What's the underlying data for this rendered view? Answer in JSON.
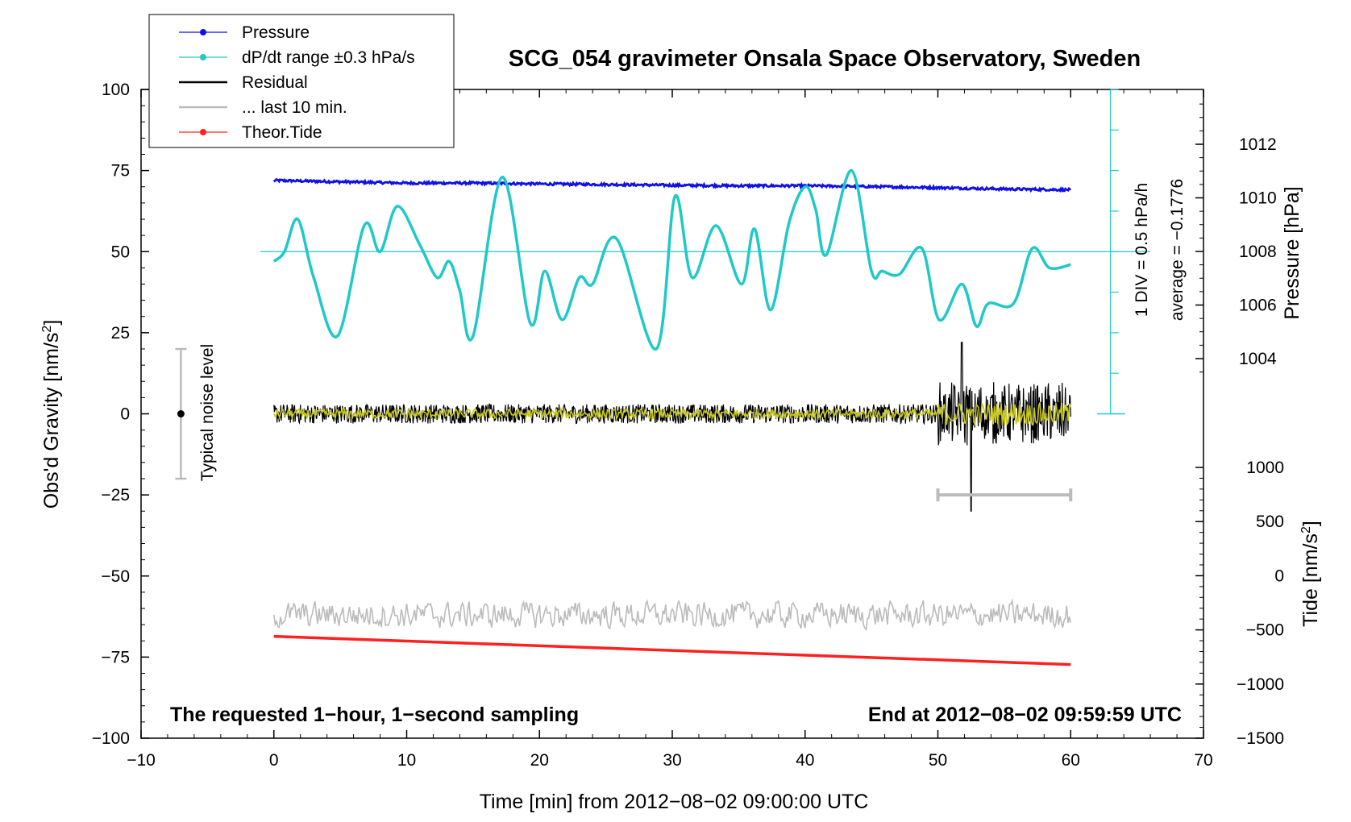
{
  "chart_data": {
    "type": "line",
    "title": "SCG_054 gravimeter Onsala Space Observatory, Sweden",
    "xlabel": "Time [min] from 2012−08−02 09:00:00 UTC",
    "ylabel_left": "Obs'd Gravity [nm/s",
    "ylabel_left_sup": "2",
    "ylabel_left_close": "]",
    "ylabel_pressure": "Pressure [hPa]",
    "ylabel_tide": "Tide [nm/s",
    "ylabel_tide_sup": "2",
    "ylabel_tide_close": "]",
    "xlim": [
      -10,
      70
    ],
    "ylim": [
      -100,
      100
    ],
    "x_ticks": [
      -10,
      0,
      10,
      20,
      30,
      40,
      50,
      60,
      70
    ],
    "x_tick_labels": [
      "−10",
      "0",
      "10",
      "20",
      "30",
      "40",
      "50",
      "60",
      "70"
    ],
    "y_ticks": [
      100,
      75,
      50,
      25,
      0,
      -25,
      -50,
      -75,
      -100
    ],
    "y_tick_labels": [
      "100",
      "75",
      "50",
      "25",
      "0",
      "−25",
      "−50",
      "−75",
      "−100"
    ],
    "pressure_axis": {
      "ticks": [
        1012,
        1010,
        1008,
        1006,
        1004
      ],
      "tick_labels": [
        "1012",
        "1010",
        "1008",
        "1006",
        "1004"
      ]
    },
    "tide_axis": {
      "ticks": [
        1000,
        500,
        0,
        -500,
        -1000,
        -1500
      ],
      "tick_labels": [
        "1000",
        "500",
        "0",
        "−500",
        "−1000",
        "−1500"
      ]
    },
    "legend": [
      {
        "label": "Pressure",
        "color": "#1010e8",
        "marker": "dot"
      },
      {
        "label": "dP/dt range ±0.3 hPa/s",
        "color": "#20c8c8",
        "marker": "dot"
      },
      {
        "label": "Residual",
        "color": "#000000",
        "marker": "none"
      },
      {
        "label": "... last 10 min.",
        "color": "#bbbbbb",
        "marker": "none"
      },
      {
        "label": "Theor.Tide",
        "color": "#ff2020",
        "marker": "dot"
      }
    ],
    "noise_label": "Typical noise level",
    "side_scale_text": "1 DIV = 0.5 hPa/h",
    "side_average_text": "average = −0.1776",
    "note_left": "The requested 1−hour, 1−second sampling",
    "note_right": "End at 2012−08−02 09:59:59 UTC",
    "series": [
      {
        "name": "Pressure",
        "color": "#1010e8",
        "x": [
          0,
          5,
          10,
          15,
          20,
          25,
          30,
          35,
          40,
          45,
          50,
          55,
          60
        ],
        "y_hPa": [
          1010.65,
          1010.6,
          1010.55,
          1010.55,
          1010.52,
          1010.5,
          1010.47,
          1010.45,
          1010.45,
          1010.42,
          1010.38,
          1010.33,
          1010.3
        ]
      },
      {
        "name": "dP/dt",
        "color": "#20c8c8",
        "x": [
          0,
          0.8,
          1.8,
          3,
          4.8,
          6.8,
          8,
          9.3,
          11,
          12.3,
          13.2,
          14,
          15,
          17.2,
          19.3,
          20.4,
          21.7,
          23,
          24,
          25.8,
          28.8,
          30.2,
          31.5,
          33.3,
          35.2,
          36.2,
          37.4,
          38.8,
          40,
          40.8,
          41.6,
          43.5,
          45,
          45.8,
          47.1,
          48.8,
          50.1,
          51.8,
          52.9,
          53.8,
          55.7,
          57.1,
          58.4,
          60
        ],
        "y": [
          47,
          50,
          60,
          42,
          24,
          58,
          50,
          64,
          52,
          42,
          47,
          38,
          24,
          73,
          28,
          44,
          29,
          42,
          40,
          54,
          20,
          67,
          42,
          58,
          40,
          57,
          32,
          59,
          70,
          63,
          49,
          75,
          44,
          44,
          43,
          51,
          29,
          40,
          27,
          34,
          34,
          51,
          45,
          46
        ]
      },
      {
        "name": "Residual",
        "color": "#000000",
        "x_range": [
          0,
          60
        ],
        "noise_amplitude": 3,
        "disturbance_start": 50,
        "disturbance_max": 22,
        "disturbance_min": -30
      },
      {
        "name": "Residual smoothed",
        "color": "#c8c820",
        "x_range": [
          0,
          60
        ],
        "noise_amplitude": 1.5
      },
      {
        "name": "... last 10 min.",
        "color": "#bbbbbb",
        "x_range": [
          0,
          60
        ],
        "center": -62,
        "amplitude": 4,
        "window_bar_x": [
          50,
          60
        ],
        "window_bar_y": -25
      },
      {
        "name": "Theor.Tide",
        "color": "#ff2020",
        "x": [
          0,
          60
        ],
        "y_tide": [
          -560,
          -820
        ]
      }
    ],
    "noise_bar": {
      "x": -7,
      "y": 0,
      "half_range": 20
    }
  }
}
